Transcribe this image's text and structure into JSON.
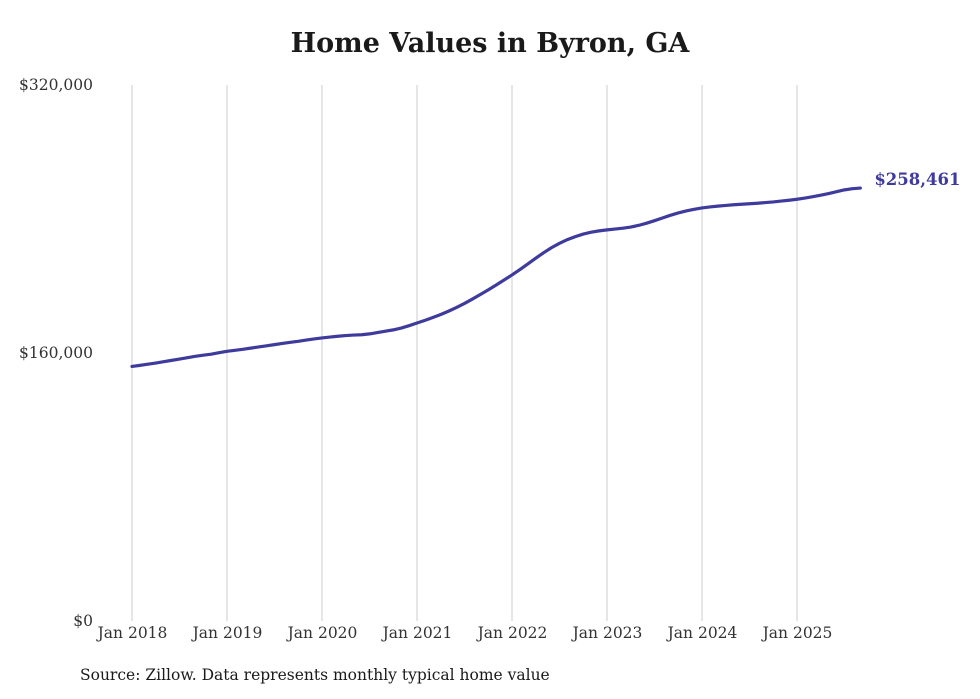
{
  "chart_data": {
    "type": "line",
    "title": "Home Values in Byron, GA",
    "source_note": "Source: Zillow. Data represents monthly typical home value",
    "final_label": "$258,461",
    "final_value": 258461,
    "xlabel": "",
    "ylabel": "",
    "ylim": [
      0,
      320000
    ],
    "grid": "vertical-only",
    "line_color": "#3f3b9d",
    "grid_color": "#cccccc",
    "x_tick_labels": [
      "Jan 2018",
      "Jan 2019",
      "Jan 2020",
      "Jan 2021",
      "Jan 2022",
      "Jan 2023",
      "Jan 2024",
      "Jan 2025"
    ],
    "y_ticks": [
      {
        "label": "$0",
        "value": 0
      },
      {
        "label": "$160,000",
        "value": 160000
      },
      {
        "label": "$320,000",
        "value": 320000
      }
    ],
    "x_monthly_start": "2018-01",
    "x_monthly_end": "2025-09",
    "series": [
      {
        "name": "Typical home value (monthly)",
        "values": [
          152000,
          152600,
          153300,
          154000,
          154800,
          155600,
          156400,
          157200,
          158000,
          158700,
          159300,
          160200,
          161000,
          161600,
          162200,
          162900,
          163600,
          164300,
          165000,
          165700,
          166400,
          167000,
          167700,
          168400,
          169000,
          169500,
          170000,
          170400,
          170700,
          170900,
          171400,
          172200,
          173000,
          173800,
          174900,
          176300,
          177900,
          179500,
          181200,
          183000,
          185000,
          187200,
          189600,
          192200,
          194900,
          197700,
          200600,
          203600,
          206600,
          209800,
          213200,
          216600,
          219900,
          222900,
          225500,
          227700,
          229500,
          231000,
          232100,
          232900,
          233500,
          234000,
          234500,
          235200,
          236200,
          237500,
          239000,
          240600,
          242200,
          243600,
          244800,
          245800,
          246600,
          247200,
          247700,
          248100,
          248500,
          248800,
          249100,
          249400,
          249800,
          250200,
          250700,
          251200,
          251800,
          252500,
          253300,
          254200,
          255200,
          256300,
          257400,
          258100,
          258461
        ]
      }
    ]
  }
}
